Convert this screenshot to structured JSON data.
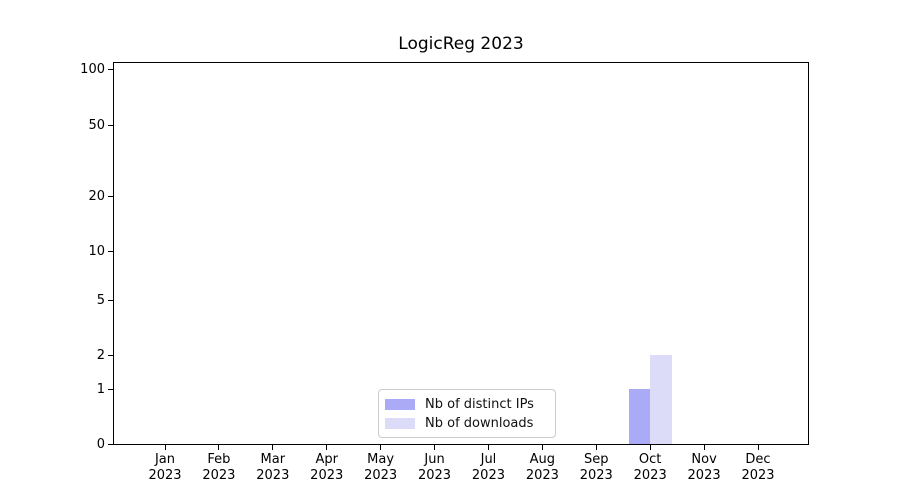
{
  "figure": {
    "title": "LogicReg 2023"
  },
  "chart_data": {
    "type": "bar",
    "title": "LogicReg 2023",
    "categories": [
      "Jan",
      "Feb",
      "Mar",
      "Apr",
      "May",
      "Jun",
      "Jul",
      "Aug",
      "Sep",
      "Oct",
      "Nov",
      "Dec"
    ],
    "category_year": "2023",
    "series": [
      {
        "name": "Nb of distinct IPs",
        "color": "#aaaaf7",
        "values": [
          0,
          0,
          0,
          0,
          0,
          0,
          0,
          0,
          0,
          1,
          0,
          0
        ]
      },
      {
        "name": "Nb of downloads",
        "color": "#dcdcf8",
        "values": [
          0,
          0,
          0,
          0,
          0,
          0,
          0,
          0,
          0,
          2,
          0,
          0
        ]
      }
    ],
    "xlabel": "",
    "ylabel": "",
    "yscale": "symlog",
    "ylim": [
      0,
      100
    ],
    "yticks": [
      100,
      50,
      20,
      10,
      5,
      2,
      1,
      0
    ],
    "grid": "horizontal",
    "legend_position": "lower center",
    "colors": {
      "major_grid": "#c6c6c6",
      "minor_grid": "#f0f0f0",
      "axis": "#000000",
      "background": "#ffffff"
    }
  }
}
